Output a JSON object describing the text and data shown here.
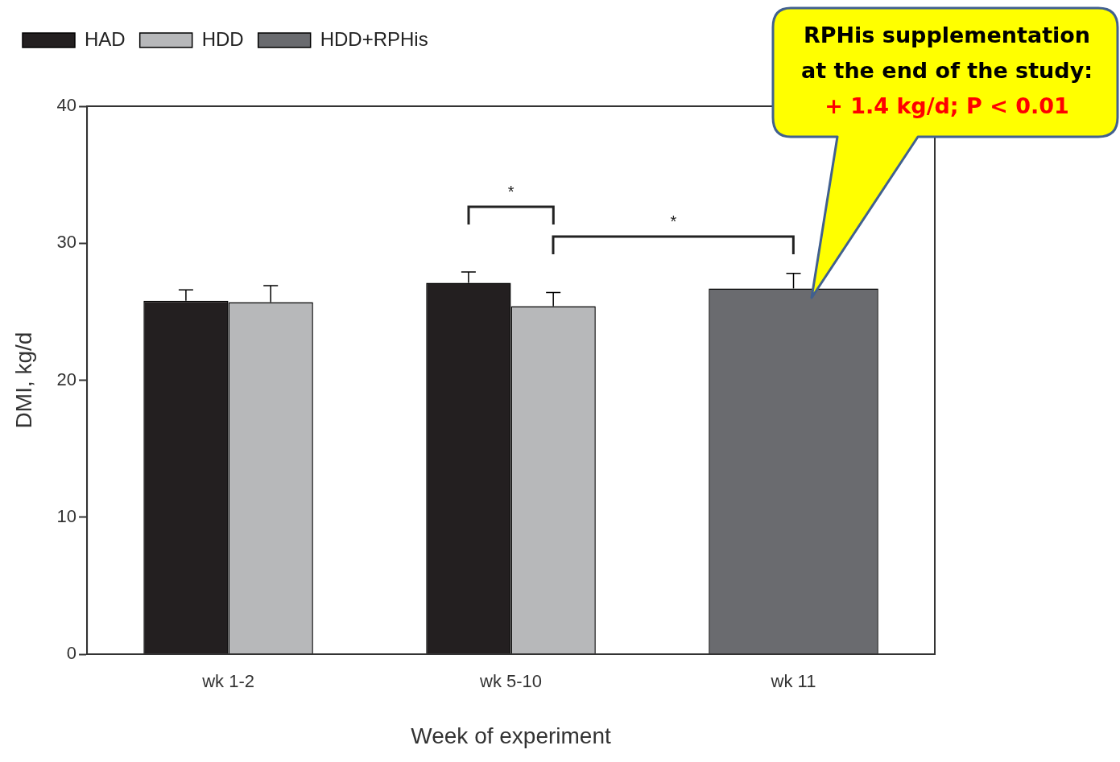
{
  "chart_data": {
    "type": "bar",
    "xlabel": "Week of experiment",
    "ylabel": "DMI, kg/d",
    "categories": [
      "wk 1-2",
      "wk 5-10",
      "wk 11"
    ],
    "series": [
      {
        "name": "HAD",
        "color": "#231f20",
        "values": [
          25.8,
          27.1,
          null
        ],
        "errors": [
          0.8,
          0.8,
          null
        ]
      },
      {
        "name": "HDD",
        "color": "#b7b8ba",
        "values": [
          25.7,
          25.4,
          null
        ],
        "errors": [
          1.2,
          1.0,
          null
        ]
      },
      {
        "name": "HDD+RPHis",
        "color": "#6a6b6f",
        "values": [
          null,
          null,
          26.7
        ],
        "errors": [
          null,
          null,
          1.1
        ]
      }
    ],
    "ylim": [
      0,
      40
    ],
    "yticks": [
      0,
      10,
      20,
      30,
      40
    ],
    "legend": "top left",
    "annotations": [
      "*",
      "*",
      "RPHis supplementation at the end of the study:",
      "+ 1.4 kg/d; P < 0.01"
    ]
  }
}
